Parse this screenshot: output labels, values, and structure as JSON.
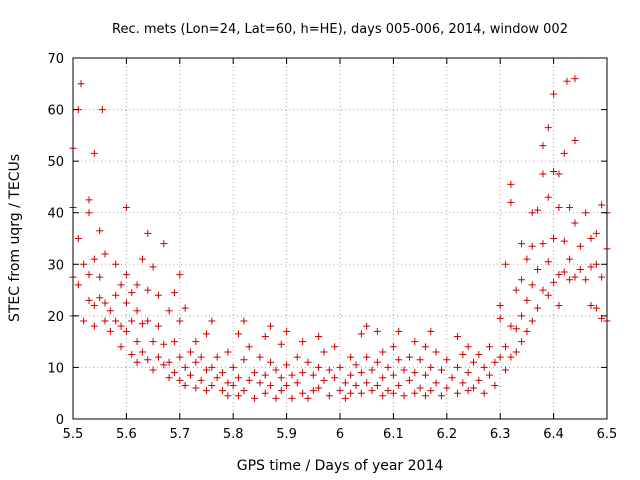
{
  "chart_data": {
    "type": "scatter",
    "title": "Rec. mets (Lon=24, Lat=60, h=HE), days 005-006, 2014, window 002",
    "xlabel": "GPS time / Days of year 2014",
    "ylabel": "STEC from uqrg / TECUs",
    "xlim": [
      5.5,
      6.5
    ],
    "ylim": [
      0,
      70
    ],
    "xticks": [
      "5.5",
      "5.6",
      "5.7",
      "5.8",
      "5.9",
      "6",
      "6.1",
      "6.2",
      "6.3",
      "6.4",
      "6.5"
    ],
    "yticks": [
      "0",
      "10",
      "20",
      "30",
      "40",
      "50",
      "60",
      "70"
    ],
    "grid": true,
    "marker": "+",
    "series": [
      {
        "name": "STEC",
        "color": "#cc0000",
        "points": [
          [
            5.5,
            52.5
          ],
          [
            5.5,
            41
          ],
          [
            5.5,
            27.5
          ],
          [
            5.5,
            20
          ],
          [
            5.51,
            60
          ],
          [
            5.51,
            35
          ],
          [
            5.51,
            26
          ],
          [
            5.515,
            65
          ],
          [
            5.52,
            30
          ],
          [
            5.52,
            19
          ],
          [
            5.53,
            42.5
          ],
          [
            5.53,
            40
          ],
          [
            5.53,
            28
          ],
          [
            5.53,
            23
          ],
          [
            5.54,
            51.5
          ],
          [
            5.54,
            31
          ],
          [
            5.54,
            22
          ],
          [
            5.54,
            18
          ],
          [
            5.55,
            36.5
          ],
          [
            5.55,
            27.5
          ],
          [
            5.55,
            23.5
          ],
          [
            5.555,
            60
          ],
          [
            5.56,
            32
          ],
          [
            5.56,
            22.5
          ],
          [
            5.56,
            19
          ],
          [
            5.57,
            21
          ],
          [
            5.57,
            17
          ],
          [
            5.58,
            30
          ],
          [
            5.58,
            24
          ],
          [
            5.58,
            19
          ],
          [
            5.59,
            26
          ],
          [
            5.59,
            18
          ],
          [
            5.59,
            14
          ],
          [
            5.6,
            41
          ],
          [
            5.6,
            28
          ],
          [
            5.6,
            22.5
          ],
          [
            5.6,
            17
          ],
          [
            5.61,
            24.5
          ],
          [
            5.61,
            19
          ],
          [
            5.61,
            12.5
          ],
          [
            5.62,
            26
          ],
          [
            5.62,
            21
          ],
          [
            5.62,
            15
          ],
          [
            5.62,
            11
          ],
          [
            5.63,
            31
          ],
          [
            5.63,
            18.5
          ],
          [
            5.63,
            13
          ],
          [
            5.64,
            36
          ],
          [
            5.64,
            25
          ],
          [
            5.64,
            19
          ],
          [
            5.64,
            11.5
          ],
          [
            5.65,
            29.5
          ],
          [
            5.65,
            15
          ],
          [
            5.65,
            9.5
          ],
          [
            5.66,
            24
          ],
          [
            5.66,
            18
          ],
          [
            5.66,
            12
          ],
          [
            5.67,
            34
          ],
          [
            5.67,
            14.5
          ],
          [
            5.67,
            10.5
          ],
          [
            5.68,
            21
          ],
          [
            5.68,
            11
          ],
          [
            5.68,
            8
          ],
          [
            5.69,
            24.5
          ],
          [
            5.69,
            15
          ],
          [
            5.69,
            9
          ],
          [
            5.7,
            28
          ],
          [
            5.7,
            19
          ],
          [
            5.7,
            12
          ],
          [
            5.7,
            7.5
          ],
          [
            5.71,
            21.5
          ],
          [
            5.71,
            10
          ],
          [
            5.71,
            6.5
          ],
          [
            5.72,
            13
          ],
          [
            5.72,
            8.5
          ],
          [
            5.73,
            15
          ],
          [
            5.73,
            11
          ],
          [
            5.73,
            6
          ],
          [
            5.74,
            12
          ],
          [
            5.74,
            7.5
          ],
          [
            5.75,
            16.5
          ],
          [
            5.75,
            9.5
          ],
          [
            5.75,
            5.5
          ],
          [
            5.76,
            19
          ],
          [
            5.76,
            10
          ],
          [
            5.76,
            6.5
          ],
          [
            5.77,
            12
          ],
          [
            5.77,
            8
          ],
          [
            5.78,
            9
          ],
          [
            5.78,
            5.5
          ],
          [
            5.79,
            13
          ],
          [
            5.79,
            7
          ],
          [
            5.79,
            4.5
          ],
          [
            5.8,
            10
          ],
          [
            5.8,
            6.5
          ],
          [
            5.81,
            16.5
          ],
          [
            5.81,
            8
          ],
          [
            5.81,
            4.5
          ],
          [
            5.82,
            19
          ],
          [
            5.82,
            11.5
          ],
          [
            5.82,
            5.5
          ],
          [
            5.83,
            14
          ],
          [
            5.83,
            7.5
          ],
          [
            5.84,
            9
          ],
          [
            5.84,
            4
          ],
          [
            5.85,
            12
          ],
          [
            5.85,
            7
          ],
          [
            5.86,
            16
          ],
          [
            5.86,
            8.5
          ],
          [
            5.86,
            5
          ],
          [
            5.87,
            18
          ],
          [
            5.87,
            11
          ],
          [
            5.87,
            6.5
          ],
          [
            5.88,
            9.5
          ],
          [
            5.88,
            4
          ],
          [
            5.89,
            14.5
          ],
          [
            5.89,
            8
          ],
          [
            5.89,
            5.5
          ],
          [
            5.9,
            17
          ],
          [
            5.9,
            10.5
          ],
          [
            5.9,
            6.5
          ],
          [
            5.91,
            8.5
          ],
          [
            5.91,
            4
          ],
          [
            5.92,
            12
          ],
          [
            5.92,
            7
          ],
          [
            5.93,
            15
          ],
          [
            5.93,
            9
          ],
          [
            5.93,
            5
          ],
          [
            5.94,
            11
          ],
          [
            5.94,
            4
          ],
          [
            5.95,
            8.5
          ],
          [
            5.95,
            5.5
          ],
          [
            5.96,
            16
          ],
          [
            5.96,
            10
          ],
          [
            5.96,
            6
          ],
          [
            5.97,
            13
          ],
          [
            5.97,
            7.5
          ],
          [
            5.98,
            9.5
          ],
          [
            5.98,
            4.5
          ],
          [
            5.99,
            14
          ],
          [
            5.99,
            8
          ],
          [
            6.0,
            10
          ],
          [
            6.0,
            5.5
          ],
          [
            6.01,
            7
          ],
          [
            6.01,
            4
          ],
          [
            6.02,
            12
          ],
          [
            6.02,
            8.5
          ],
          [
            6.02,
            5
          ],
          [
            6.03,
            10.5
          ],
          [
            6.03,
            6.5
          ],
          [
            6.04,
            16.5
          ],
          [
            6.04,
            9
          ],
          [
            6.04,
            5
          ],
          [
            6.05,
            18
          ],
          [
            6.05,
            12
          ],
          [
            6.05,
            7
          ],
          [
            6.06,
            9.5
          ],
          [
            6.06,
            5.5
          ],
          [
            6.07,
            17
          ],
          [
            6.07,
            11
          ],
          [
            6.07,
            6.5
          ],
          [
            6.08,
            13
          ],
          [
            6.08,
            8
          ],
          [
            6.08,
            4.5
          ],
          [
            6.09,
            10
          ],
          [
            6.09,
            5.5
          ],
          [
            6.1,
            14
          ],
          [
            6.1,
            8.5
          ],
          [
            6.1,
            5
          ],
          [
            6.11,
            17
          ],
          [
            6.11,
            11.5
          ],
          [
            6.11,
            6.5
          ],
          [
            6.12,
            9.5
          ],
          [
            6.12,
            4.5
          ],
          [
            6.13,
            12
          ],
          [
            6.13,
            7.5
          ],
          [
            6.14,
            15
          ],
          [
            6.14,
            9
          ],
          [
            6.14,
            5
          ],
          [
            6.15,
            11.5
          ],
          [
            6.15,
            6
          ],
          [
            6.16,
            14
          ],
          [
            6.16,
            8.5
          ],
          [
            6.16,
            4.5
          ],
          [
            6.17,
            17
          ],
          [
            6.17,
            10
          ],
          [
            6.17,
            5.5
          ],
          [
            6.18,
            13
          ],
          [
            6.18,
            7
          ],
          [
            6.19,
            9.5
          ],
          [
            6.19,
            4.5
          ],
          [
            6.2,
            11.5
          ],
          [
            6.2,
            6
          ],
          [
            6.21,
            8
          ],
          [
            6.22,
            16
          ],
          [
            6.22,
            10
          ],
          [
            6.22,
            5
          ],
          [
            6.23,
            12.5
          ],
          [
            6.23,
            7
          ],
          [
            6.24,
            14
          ],
          [
            6.24,
            9
          ],
          [
            6.24,
            5.5
          ],
          [
            6.25,
            11
          ],
          [
            6.25,
            6
          ],
          [
            6.26,
            12.5
          ],
          [
            6.26,
            7.5
          ],
          [
            6.27,
            10
          ],
          [
            6.27,
            5
          ],
          [
            6.28,
            14
          ],
          [
            6.28,
            8.5
          ],
          [
            6.29,
            11
          ],
          [
            6.29,
            6.5
          ],
          [
            6.3,
            22
          ],
          [
            6.3,
            19.5
          ],
          [
            6.3,
            12
          ],
          [
            6.31,
            30
          ],
          [
            6.31,
            14
          ],
          [
            6.31,
            9.5
          ],
          [
            6.32,
            45.5
          ],
          [
            6.32,
            42
          ],
          [
            6.32,
            18
          ],
          [
            6.32,
            12
          ],
          [
            6.33,
            25
          ],
          [
            6.33,
            17.5
          ],
          [
            6.33,
            13
          ],
          [
            6.34,
            34
          ],
          [
            6.34,
            27
          ],
          [
            6.34,
            20
          ],
          [
            6.34,
            15
          ],
          [
            6.35,
            31
          ],
          [
            6.35,
            23
          ],
          [
            6.35,
            17
          ],
          [
            6.36,
            40
          ],
          [
            6.36,
            33.5
          ],
          [
            6.36,
            26
          ],
          [
            6.36,
            19
          ],
          [
            6.37,
            40.5
          ],
          [
            6.37,
            29
          ],
          [
            6.37,
            21.5
          ],
          [
            6.38,
            53
          ],
          [
            6.38,
            47.5
          ],
          [
            6.38,
            34
          ],
          [
            6.38,
            25
          ],
          [
            6.39,
            56.5
          ],
          [
            6.39,
            43
          ],
          [
            6.39,
            30.5
          ],
          [
            6.39,
            24
          ],
          [
            6.4,
            63
          ],
          [
            6.4,
            48
          ],
          [
            6.4,
            35
          ],
          [
            6.4,
            26.5
          ],
          [
            6.41,
            47.5
          ],
          [
            6.41,
            41
          ],
          [
            6.41,
            28
          ],
          [
            6.41,
            22
          ],
          [
            6.42,
            51.5
          ],
          [
            6.42,
            34.5
          ],
          [
            6.42,
            28.5
          ],
          [
            6.425,
            65.5
          ],
          [
            6.43,
            41
          ],
          [
            6.43,
            31
          ],
          [
            6.43,
            27
          ],
          [
            6.44,
            54
          ],
          [
            6.44,
            66
          ],
          [
            6.44,
            38
          ],
          [
            6.44,
            27.5
          ],
          [
            6.45,
            33.5
          ],
          [
            6.45,
            29
          ],
          [
            6.46,
            40
          ],
          [
            6.46,
            27
          ],
          [
            6.47,
            35
          ],
          [
            6.47,
            29.5
          ],
          [
            6.47,
            22
          ],
          [
            6.48,
            36
          ],
          [
            6.48,
            30
          ],
          [
            6.48,
            21.5
          ],
          [
            6.49,
            41.5
          ],
          [
            6.49,
            27.5
          ],
          [
            6.49,
            19.5
          ],
          [
            6.5,
            40
          ],
          [
            6.5,
            33
          ],
          [
            6.5,
            19
          ]
        ]
      }
    ]
  }
}
